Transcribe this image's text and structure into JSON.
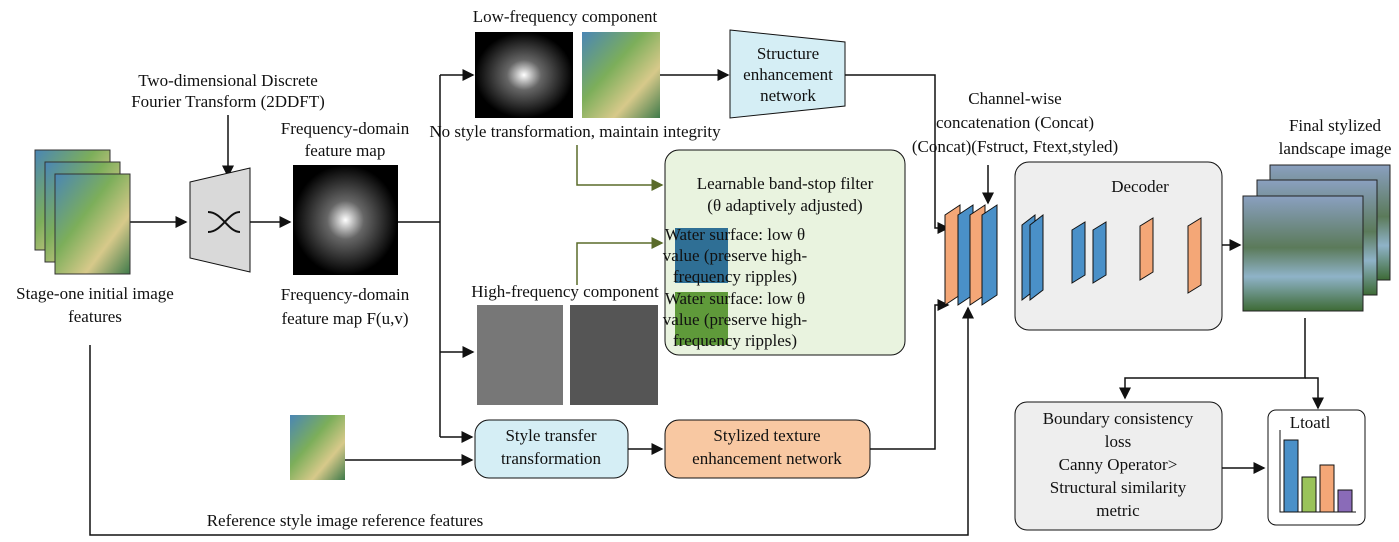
{
  "dft_label": [
    "Two-dimensional Discrete",
    "Fourier Transform (2DDFT)"
  ],
  "input_label": [
    "Stage-one initial image",
    "features"
  ],
  "freq_map_top": [
    "Frequency-domain",
    "feature map"
  ],
  "freq_map_bottom": [
    "Frequency-domain",
    "feature map F(u,v)"
  ],
  "low_freq_label": "Low-frequency component",
  "low_freq_note": "No style transformation, maintain integrity",
  "structure_net": [
    "Structure",
    "enhancement",
    "network"
  ],
  "filter": {
    "title": [
      "Learnable band-stop filter",
      "(θ adaptively adjusted)"
    ],
    "items": [
      [
        "Water surface: low θ",
        "value (preserve high-",
        "frequency ripples)"
      ],
      [
        "Water surface: low θ",
        "value (preserve high-",
        "frequency ripples)"
      ]
    ]
  },
  "high_freq_label": "High-frequency component",
  "style_transfer": [
    "Style transfer",
    "transformation"
  ],
  "texture_net": [
    "Stylized texture",
    "enhancement network"
  ],
  "reference_label": "Reference style image reference features",
  "concat_label": [
    "Channel-wise",
    "concatenation (Concat)",
    "(Concat)(Fstruct, Ftext,styled)"
  ],
  "decoder": "Decoder",
  "output_label": [
    "Final stylized",
    "landscape image"
  ],
  "loss_box": [
    "Boundary consistency",
    "loss",
    "Canny Operator>",
    "Structural similarity",
    "metric"
  ],
  "total_loss": "Ltoatl"
}
